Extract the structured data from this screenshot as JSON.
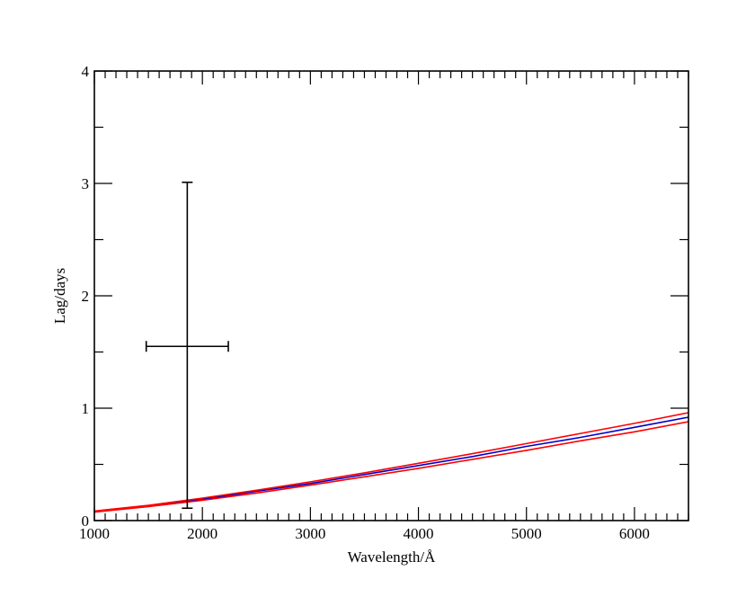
{
  "chart_data": {
    "type": "line",
    "xlabel": "Wavelength/Å",
    "ylabel": "Lag/days",
    "xlim": [
      1000,
      6500
    ],
    "ylim": [
      0,
      4
    ],
    "x_ticks": [
      "1000",
      "2000",
      "3000",
      "4000",
      "5000",
      "6000"
    ],
    "y_ticks": [
      "0",
      "1",
      "2",
      "3",
      "4"
    ],
    "grid": false,
    "series": [
      {
        "color": "#0000cc",
        "x": [
          1000,
          1500,
          2000,
          2500,
          3000,
          3500,
          4000,
          4500,
          5000,
          5500,
          6000,
          6500
        ],
        "values": [
          0.08,
          0.13,
          0.19,
          0.26,
          0.33,
          0.41,
          0.49,
          0.57,
          0.66,
          0.74,
          0.83,
          0.92
        ]
      },
      {
        "color": "#ff0000",
        "x": [
          1000,
          1500,
          2000,
          2500,
          3000,
          3500,
          4000,
          4500,
          5000,
          5500,
          6000,
          6500
        ],
        "values": [
          0.085,
          0.135,
          0.2,
          0.27,
          0.345,
          0.425,
          0.51,
          0.595,
          0.685,
          0.775,
          0.865,
          0.96
        ]
      },
      {
        "color": "#ff0000",
        "x": [
          1000,
          1500,
          2000,
          2500,
          3000,
          3500,
          4000,
          4500,
          5000,
          5500,
          6000,
          6500
        ],
        "values": [
          0.075,
          0.125,
          0.18,
          0.245,
          0.315,
          0.39,
          0.465,
          0.545,
          0.625,
          0.71,
          0.79,
          0.88
        ]
      }
    ],
    "error_points": [
      {
        "x": 1860,
        "y": 1.55,
        "xerr_low": 1480,
        "xerr_high": 2240,
        "yerr_low": 0.11,
        "yerr_high": 3.01,
        "color": "#000000"
      }
    ]
  }
}
